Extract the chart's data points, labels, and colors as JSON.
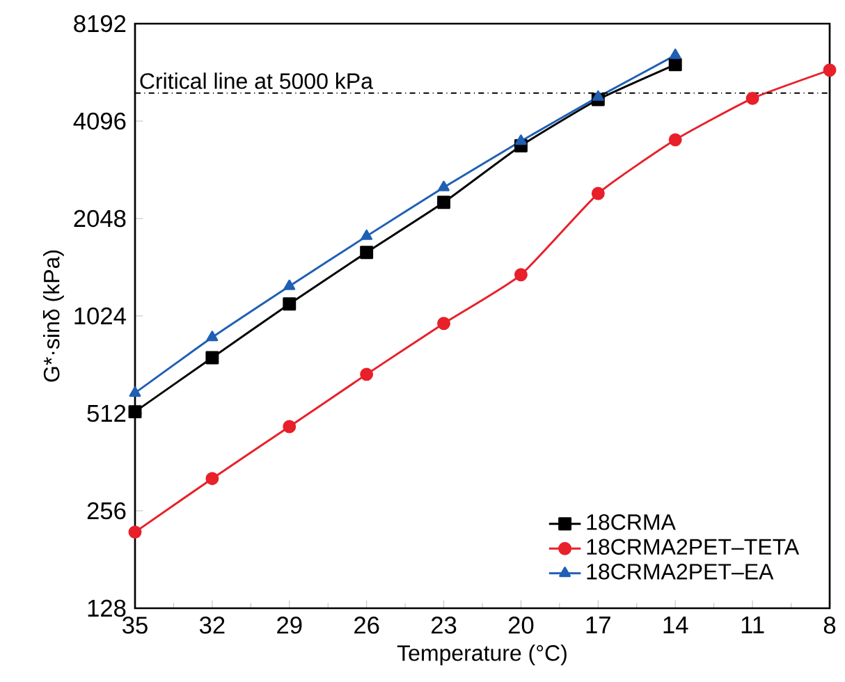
{
  "chart_data": {
    "type": "line",
    "xlabel": "Temperature (°C)",
    "ylabel": "G*·sinδ (kPa)",
    "x": [
      35,
      32,
      29,
      26,
      23,
      20,
      17,
      14,
      11,
      8
    ],
    "series": [
      {
        "name": "18CRMA",
        "color": "#000000",
        "marker": "square",
        "values": [
          518,
          761,
          1115,
          1609,
          2297,
          3437,
          4776,
          6120,
          null,
          null
        ]
      },
      {
        "name": "18CRMA2PET–TETA",
        "color": "#e8202a",
        "marker": "circle",
        "values": [
          220,
          322,
          466,
          676,
          971,
          1373,
          2447,
          3586,
          4813,
          5885
        ]
      },
      {
        "name": "18CRMA2PET–EA",
        "color": "#1f5fb4",
        "marker": "triangle",
        "values": [
          592,
          879,
          1265,
          1806,
          2555,
          3552,
          4861,
          6543,
          null,
          null
        ]
      }
    ],
    "xlim": [
      35,
      8
    ],
    "xticks": [
      35,
      32,
      29,
      26,
      23,
      20,
      17,
      14,
      11,
      8
    ],
    "ylim": [
      128,
      8192
    ],
    "yticks": [
      128,
      256,
      512,
      1024,
      2048,
      4096,
      8192
    ],
    "log": "y",
    "legend": "bottom right",
    "ref_lines": [
      {
        "axis": "y",
        "value": 5000,
        "label": "Critical line at 5000 kPa",
        "color": "#000000",
        "line_style": "dashdot"
      }
    ]
  }
}
